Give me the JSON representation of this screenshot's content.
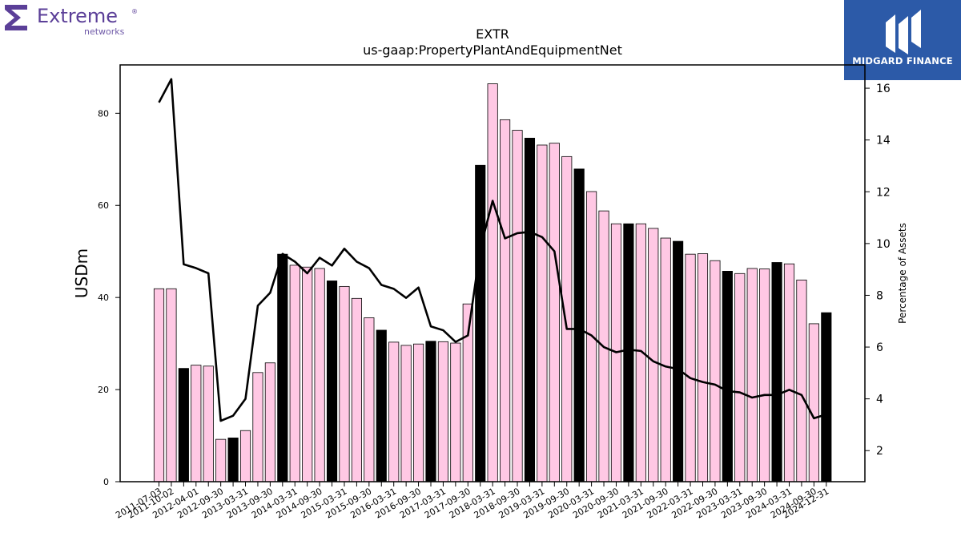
{
  "branding": {
    "left_logo_word": "Extreme",
    "left_logo_sub": "networks",
    "left_logo_mark": "®",
    "right_logo_text": "MIDGARD FINANCE",
    "left_logo_color": "#5b3f98",
    "right_logo_bg": "#2c5aa8"
  },
  "chart_data": {
    "type": "bar",
    "title": "EXTR",
    "subtitle": "us-gaap:PropertyPlantAndEquipmentNet",
    "ylabel": "USDm",
    "y2label": "Percentage of Assets",
    "ylim": [
      0,
      90.5
    ],
    "y2lim": [
      0.8,
      16.9
    ],
    "yticks": [
      0,
      20,
      40,
      60,
      80
    ],
    "y2ticks": [
      2,
      4,
      6,
      8,
      10,
      12,
      14,
      16
    ],
    "grid": false,
    "colors": {
      "bar_default": "#ffc8e4",
      "bar_highlight": "#000000",
      "line": "#000000"
    },
    "categories": [
      "2011-07-03",
      "2011-10-02",
      "2012-01-01",
      "2012-04-01",
      "2012-06-30",
      "2012-09-30",
      "2012-12-31",
      "2013-03-31",
      "2013-06-30",
      "2013-09-30",
      "2013-12-31",
      "2014-03-31",
      "2014-06-30",
      "2014-09-30",
      "2014-12-31",
      "2015-03-31",
      "2015-06-30",
      "2015-09-30",
      "2015-12-31",
      "2016-03-31",
      "2016-06-30",
      "2016-09-30",
      "2016-12-31",
      "2017-03-31",
      "2017-06-30",
      "2017-09-30",
      "2017-12-31",
      "2018-03-31",
      "2018-06-30",
      "2018-09-30",
      "2018-12-31",
      "2019-03-31",
      "2019-06-30",
      "2019-09-30",
      "2019-12-31",
      "2020-03-31",
      "2020-06-30",
      "2020-09-30",
      "2020-12-31",
      "2021-03-31",
      "2021-06-30",
      "2021-09-30",
      "2021-12-31",
      "2022-03-31",
      "2022-06-30",
      "2022-09-30",
      "2022-12-31",
      "2023-03-31",
      "2023-06-30",
      "2023-09-30",
      "2023-12-31",
      "2024-03-31",
      "2024-06-30",
      "2024-09-30",
      "2024-12-31"
    ],
    "tick_labels": [
      "2011-07-03",
      "2011-10-02",
      "2012-04-01",
      "2012-09-30",
      "2013-03-31",
      "2013-09-30",
      "2014-03-31",
      "2014-09-30",
      "2015-03-31",
      "2015-09-30",
      "2016-03-31",
      "2016-09-30",
      "2017-03-31",
      "2017-09-30",
      "2018-03-31",
      "2018-09-30",
      "2019-03-31",
      "2019-09-30",
      "2020-03-31",
      "2020-09-30",
      "2021-03-31",
      "2021-09-30",
      "2022-03-31",
      "2022-09-30",
      "2023-03-31",
      "2023-09-30",
      "2024-03-31",
      "2024-09-30",
      "2024-12-31"
    ],
    "series": [
      {
        "type": "bar",
        "axis": "left",
        "values": [
          41.9,
          41.9,
          24.6,
          25.3,
          25.1,
          9.2,
          9.5,
          11.1,
          23.7,
          25.8,
          49.4,
          47.0,
          46.6,
          46.3,
          43.6,
          42.4,
          39.8,
          35.6,
          32.9,
          30.3,
          29.6,
          29.9,
          30.5,
          30.4,
          30.1,
          38.6,
          68.7,
          86.4,
          78.6,
          76.3,
          74.6,
          73.1,
          73.5,
          70.6,
          67.9,
          63.0,
          58.8,
          56.0,
          56.0,
          56.0,
          55.0,
          52.9,
          52.2,
          49.4,
          49.5,
          48.0,
          45.7,
          45.2,
          46.3,
          46.2,
          47.6,
          47.3,
          43.8,
          34.3,
          36.7
        ],
        "highlight": [
          false,
          false,
          true,
          false,
          false,
          false,
          true,
          false,
          false,
          false,
          true,
          false,
          false,
          false,
          true,
          false,
          false,
          false,
          true,
          false,
          false,
          false,
          true,
          false,
          false,
          false,
          true,
          false,
          false,
          false,
          true,
          false,
          false,
          false,
          true,
          false,
          false,
          false,
          true,
          false,
          false,
          false,
          true,
          false,
          false,
          false,
          true,
          false,
          false,
          false,
          true,
          false,
          false,
          false,
          true
        ]
      },
      {
        "type": "line",
        "axis": "right",
        "values": [
          15.45,
          16.35,
          9.2,
          9.05,
          8.85,
          3.15,
          3.35,
          4.0,
          7.6,
          8.1,
          9.6,
          9.3,
          8.85,
          9.45,
          9.15,
          9.8,
          9.3,
          9.05,
          8.4,
          8.25,
          7.9,
          8.3,
          6.8,
          6.65,
          6.2,
          6.45,
          9.8,
          11.65,
          10.2,
          10.4,
          10.45,
          10.25,
          9.7,
          6.7,
          6.7,
          6.45,
          6.0,
          5.8,
          5.9,
          5.85,
          5.45,
          5.25,
          5.15,
          4.8,
          4.65,
          4.55,
          4.3,
          4.25,
          4.05,
          4.15,
          4.15,
          4.35,
          4.15,
          3.25,
          3.4
        ]
      }
    ]
  }
}
